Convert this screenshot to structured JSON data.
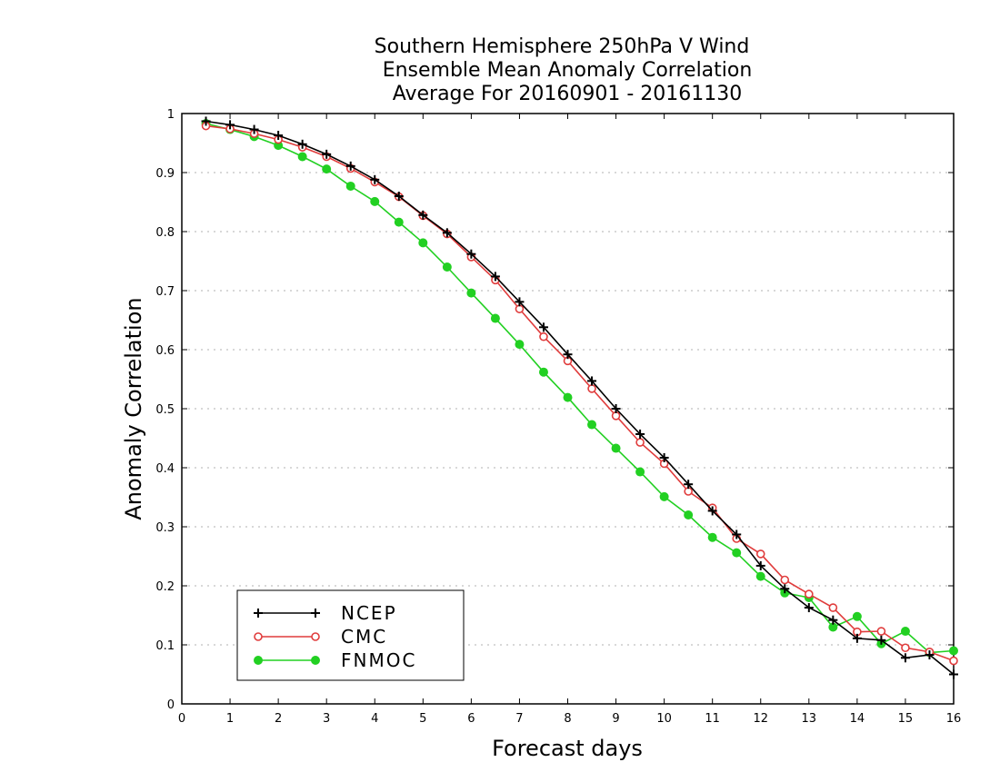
{
  "chart_data": {
    "type": "line",
    "title_lines": [
      "Southern Hemisphere 250hPa V Wind",
      "Ensemble Mean Anomaly Correlation",
      "Average For 20160901 - 20161130"
    ],
    "xlabel": "Forecast days",
    "ylabel": "Anomaly Correlation",
    "xlim": [
      0,
      16
    ],
    "ylim": [
      0,
      1
    ],
    "x_ticks": [
      "0",
      "1",
      "2",
      "3",
      "4",
      "5",
      "6",
      "7",
      "8",
      "9",
      "10",
      "11",
      "12",
      "13",
      "14",
      "15",
      "16"
    ],
    "y_ticks": [
      "0",
      "0.1",
      "0.2",
      "0.3",
      "0.4",
      "0.5",
      "0.6",
      "0.7",
      "0.8",
      "0.9",
      "1"
    ],
    "grid": "horizontal dotted",
    "legend_position": "bottom-left",
    "x": [
      0.5,
      1,
      1.5,
      2,
      2.5,
      3,
      3.5,
      4,
      4.5,
      5,
      5.5,
      6,
      6.5,
      7,
      7.5,
      8,
      8.5,
      9,
      9.5,
      10,
      10.5,
      11,
      11.5,
      12,
      12.5,
      13,
      13.5,
      14,
      14.5,
      15,
      15.5,
      16
    ],
    "series": [
      {
        "name": "NCEP",
        "color": "#000000",
        "marker": "plus",
        "values": [
          0.987,
          0.981,
          0.973,
          0.963,
          0.948,
          0.931,
          0.911,
          0.888,
          0.86,
          0.828,
          0.798,
          0.762,
          0.724,
          0.681,
          0.638,
          0.592,
          0.547,
          0.5,
          0.457,
          0.417,
          0.372,
          0.327,
          0.287,
          0.234,
          0.195,
          0.163,
          0.142,
          0.111,
          0.108,
          0.078,
          0.083,
          0.05
        ]
      },
      {
        "name": "CMC",
        "color": "#e03c3c",
        "marker": "open-circle",
        "values": [
          0.979,
          0.974,
          0.966,
          0.956,
          0.943,
          0.927,
          0.907,
          0.884,
          0.859,
          0.827,
          0.796,
          0.757,
          0.718,
          0.669,
          0.622,
          0.581,
          0.534,
          0.488,
          0.443,
          0.407,
          0.36,
          0.332,
          0.28,
          0.254,
          0.21,
          0.186,
          0.163,
          0.122,
          0.123,
          0.095,
          0.088,
          0.073
        ]
      },
      {
        "name": "FNMOC",
        "color": "#22d022",
        "marker": "filled-circle",
        "values": [
          0.983,
          0.973,
          0.961,
          0.946,
          0.927,
          0.906,
          0.877,
          0.851,
          0.816,
          0.781,
          0.74,
          0.696,
          0.653,
          0.609,
          0.562,
          0.519,
          0.473,
          0.433,
          0.393,
          0.351,
          0.32,
          0.282,
          0.256,
          0.216,
          0.188,
          0.18,
          0.13,
          0.148,
          0.102,
          0.123,
          0.087,
          0.09
        ]
      }
    ]
  }
}
